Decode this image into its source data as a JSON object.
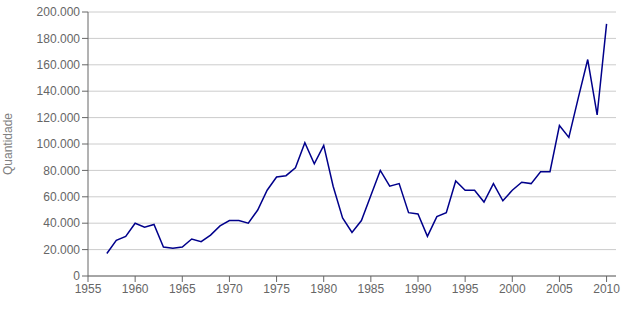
{
  "chart_data": {
    "type": "line",
    "ylabel": "Quantidade",
    "x": [
      1957,
      1958,
      1959,
      1960,
      1961,
      1962,
      1963,
      1964,
      1965,
      1966,
      1967,
      1968,
      1969,
      1970,
      1971,
      1972,
      1973,
      1974,
      1975,
      1976,
      1977,
      1978,
      1979,
      1980,
      1981,
      1982,
      1983,
      1984,
      1985,
      1986,
      1987,
      1988,
      1989,
      1990,
      1991,
      1992,
      1993,
      1994,
      1995,
      1996,
      1997,
      1998,
      1999,
      2000,
      2001,
      2002,
      2003,
      2004,
      2005,
      2006,
      2007,
      2008,
      2009,
      2010
    ],
    "values": [
      17000,
      27000,
      30000,
      40000,
      37000,
      39000,
      22000,
      21000,
      22000,
      28000,
      26000,
      31000,
      38000,
      42000,
      42000,
      40000,
      50000,
      65000,
      75000,
      76000,
      82000,
      101000,
      85000,
      99000,
      68000,
      44000,
      33000,
      42000,
      61000,
      80000,
      68000,
      70000,
      48000,
      47000,
      30000,
      45000,
      48000,
      72000,
      65000,
      65000,
      56000,
      70000,
      57000,
      65000,
      71000,
      70000,
      79000,
      79000,
      114000,
      105000,
      135000,
      164000,
      122000,
      191000
    ],
    "color": "#00008B",
    "xlim": [
      1955,
      2011
    ],
    "xticks": [
      1955,
      1960,
      1965,
      1970,
      1975,
      1980,
      1985,
      1990,
      1995,
      2000,
      2005,
      2010
    ],
    "ylim": [
      0,
      200000
    ],
    "yticks": [
      0,
      {
        "value": 20000,
        "label": "20.000"
      },
      {
        "value": 40000,
        "label": "40.000"
      },
      {
        "value": 60000,
        "label": "60.000"
      },
      {
        "value": 80000,
        "label": "80.000"
      },
      {
        "value": 100000,
        "label": "100.000"
      },
      {
        "value": 120000,
        "label": "120.000"
      },
      {
        "value": 140000,
        "label": "140.000"
      },
      {
        "value": 160000,
        "label": "160.000"
      },
      {
        "value": 180000,
        "label": "180.000"
      },
      {
        "value": 200000,
        "label": "200.000"
      }
    ],
    "grid": true
  }
}
